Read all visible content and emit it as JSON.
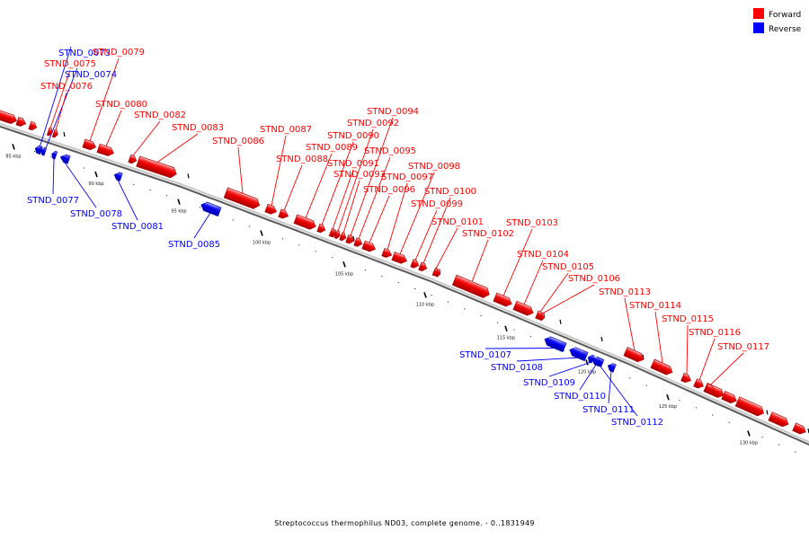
{
  "legend": {
    "forward": {
      "label": "Forward",
      "color": "#ff0000"
    },
    "reverse": {
      "label": "Reverse",
      "color": "#0000ff"
    }
  },
  "caption": "Streptococcus thermophilus ND03, complete genome. - 0..1831949",
  "axis": {
    "unit": "kbp",
    "ticks": [
      "85 kbp",
      "90 kbp",
      "95 kbp",
      "100 kbp",
      "105 kbp",
      "110 kbp",
      "115 kbp",
      "120 kbp",
      "125 kbp",
      "130 kbp"
    ]
  },
  "genes": [
    {
      "id": "STND_0073",
      "strand": "reverse"
    },
    {
      "id": "STND_0074",
      "strand": "reverse"
    },
    {
      "id": "STND_0075",
      "strand": "forward"
    },
    {
      "id": "STND_0076",
      "strand": "forward"
    },
    {
      "id": "STND_0077",
      "strand": "reverse"
    },
    {
      "id": "STND_0078",
      "strand": "reverse"
    },
    {
      "id": "STND_0079",
      "strand": "forward"
    },
    {
      "id": "STND_0080",
      "strand": "forward"
    },
    {
      "id": "STND_0081",
      "strand": "reverse"
    },
    {
      "id": "STND_0082",
      "strand": "forward"
    },
    {
      "id": "STND_0083",
      "strand": "forward"
    },
    {
      "id": "STND_0085",
      "strand": "reverse"
    },
    {
      "id": "STND_0086",
      "strand": "forward"
    },
    {
      "id": "STND_0087",
      "strand": "forward"
    },
    {
      "id": "STND_0088",
      "strand": "forward"
    },
    {
      "id": "STND_0089",
      "strand": "forward"
    },
    {
      "id": "STND_0090",
      "strand": "forward"
    },
    {
      "id": "STND_0091",
      "strand": "forward"
    },
    {
      "id": "STND_0092",
      "strand": "forward"
    },
    {
      "id": "STND_0093",
      "strand": "forward"
    },
    {
      "id": "STND_0094",
      "strand": "forward"
    },
    {
      "id": "STND_0095",
      "strand": "forward"
    },
    {
      "id": "STND_0096",
      "strand": "forward"
    },
    {
      "id": "STND_0097",
      "strand": "forward"
    },
    {
      "id": "STND_0098",
      "strand": "forward"
    },
    {
      "id": "STND_0099",
      "strand": "forward"
    },
    {
      "id": "STND_0100",
      "strand": "forward"
    },
    {
      "id": "STND_0101",
      "strand": "forward"
    },
    {
      "id": "STND_0102",
      "strand": "forward"
    },
    {
      "id": "STND_0103",
      "strand": "forward"
    },
    {
      "id": "STND_0104",
      "strand": "forward"
    },
    {
      "id": "STND_0105",
      "strand": "forward"
    },
    {
      "id": "STND_0106",
      "strand": "forward"
    },
    {
      "id": "STND_0107",
      "strand": "reverse"
    },
    {
      "id": "STND_0108",
      "strand": "reverse"
    },
    {
      "id": "STND_0109",
      "strand": "reverse"
    },
    {
      "id": "STND_0110",
      "strand": "reverse"
    },
    {
      "id": "STND_0111",
      "strand": "reverse"
    },
    {
      "id": "STND_0112",
      "strand": "reverse"
    },
    {
      "id": "STND_0113",
      "strand": "forward"
    },
    {
      "id": "STND_0114",
      "strand": "forward"
    },
    {
      "id": "STND_0115",
      "strand": "forward"
    },
    {
      "id": "STND_0116",
      "strand": "forward"
    },
    {
      "id": "STND_0117",
      "strand": "forward"
    }
  ]
}
